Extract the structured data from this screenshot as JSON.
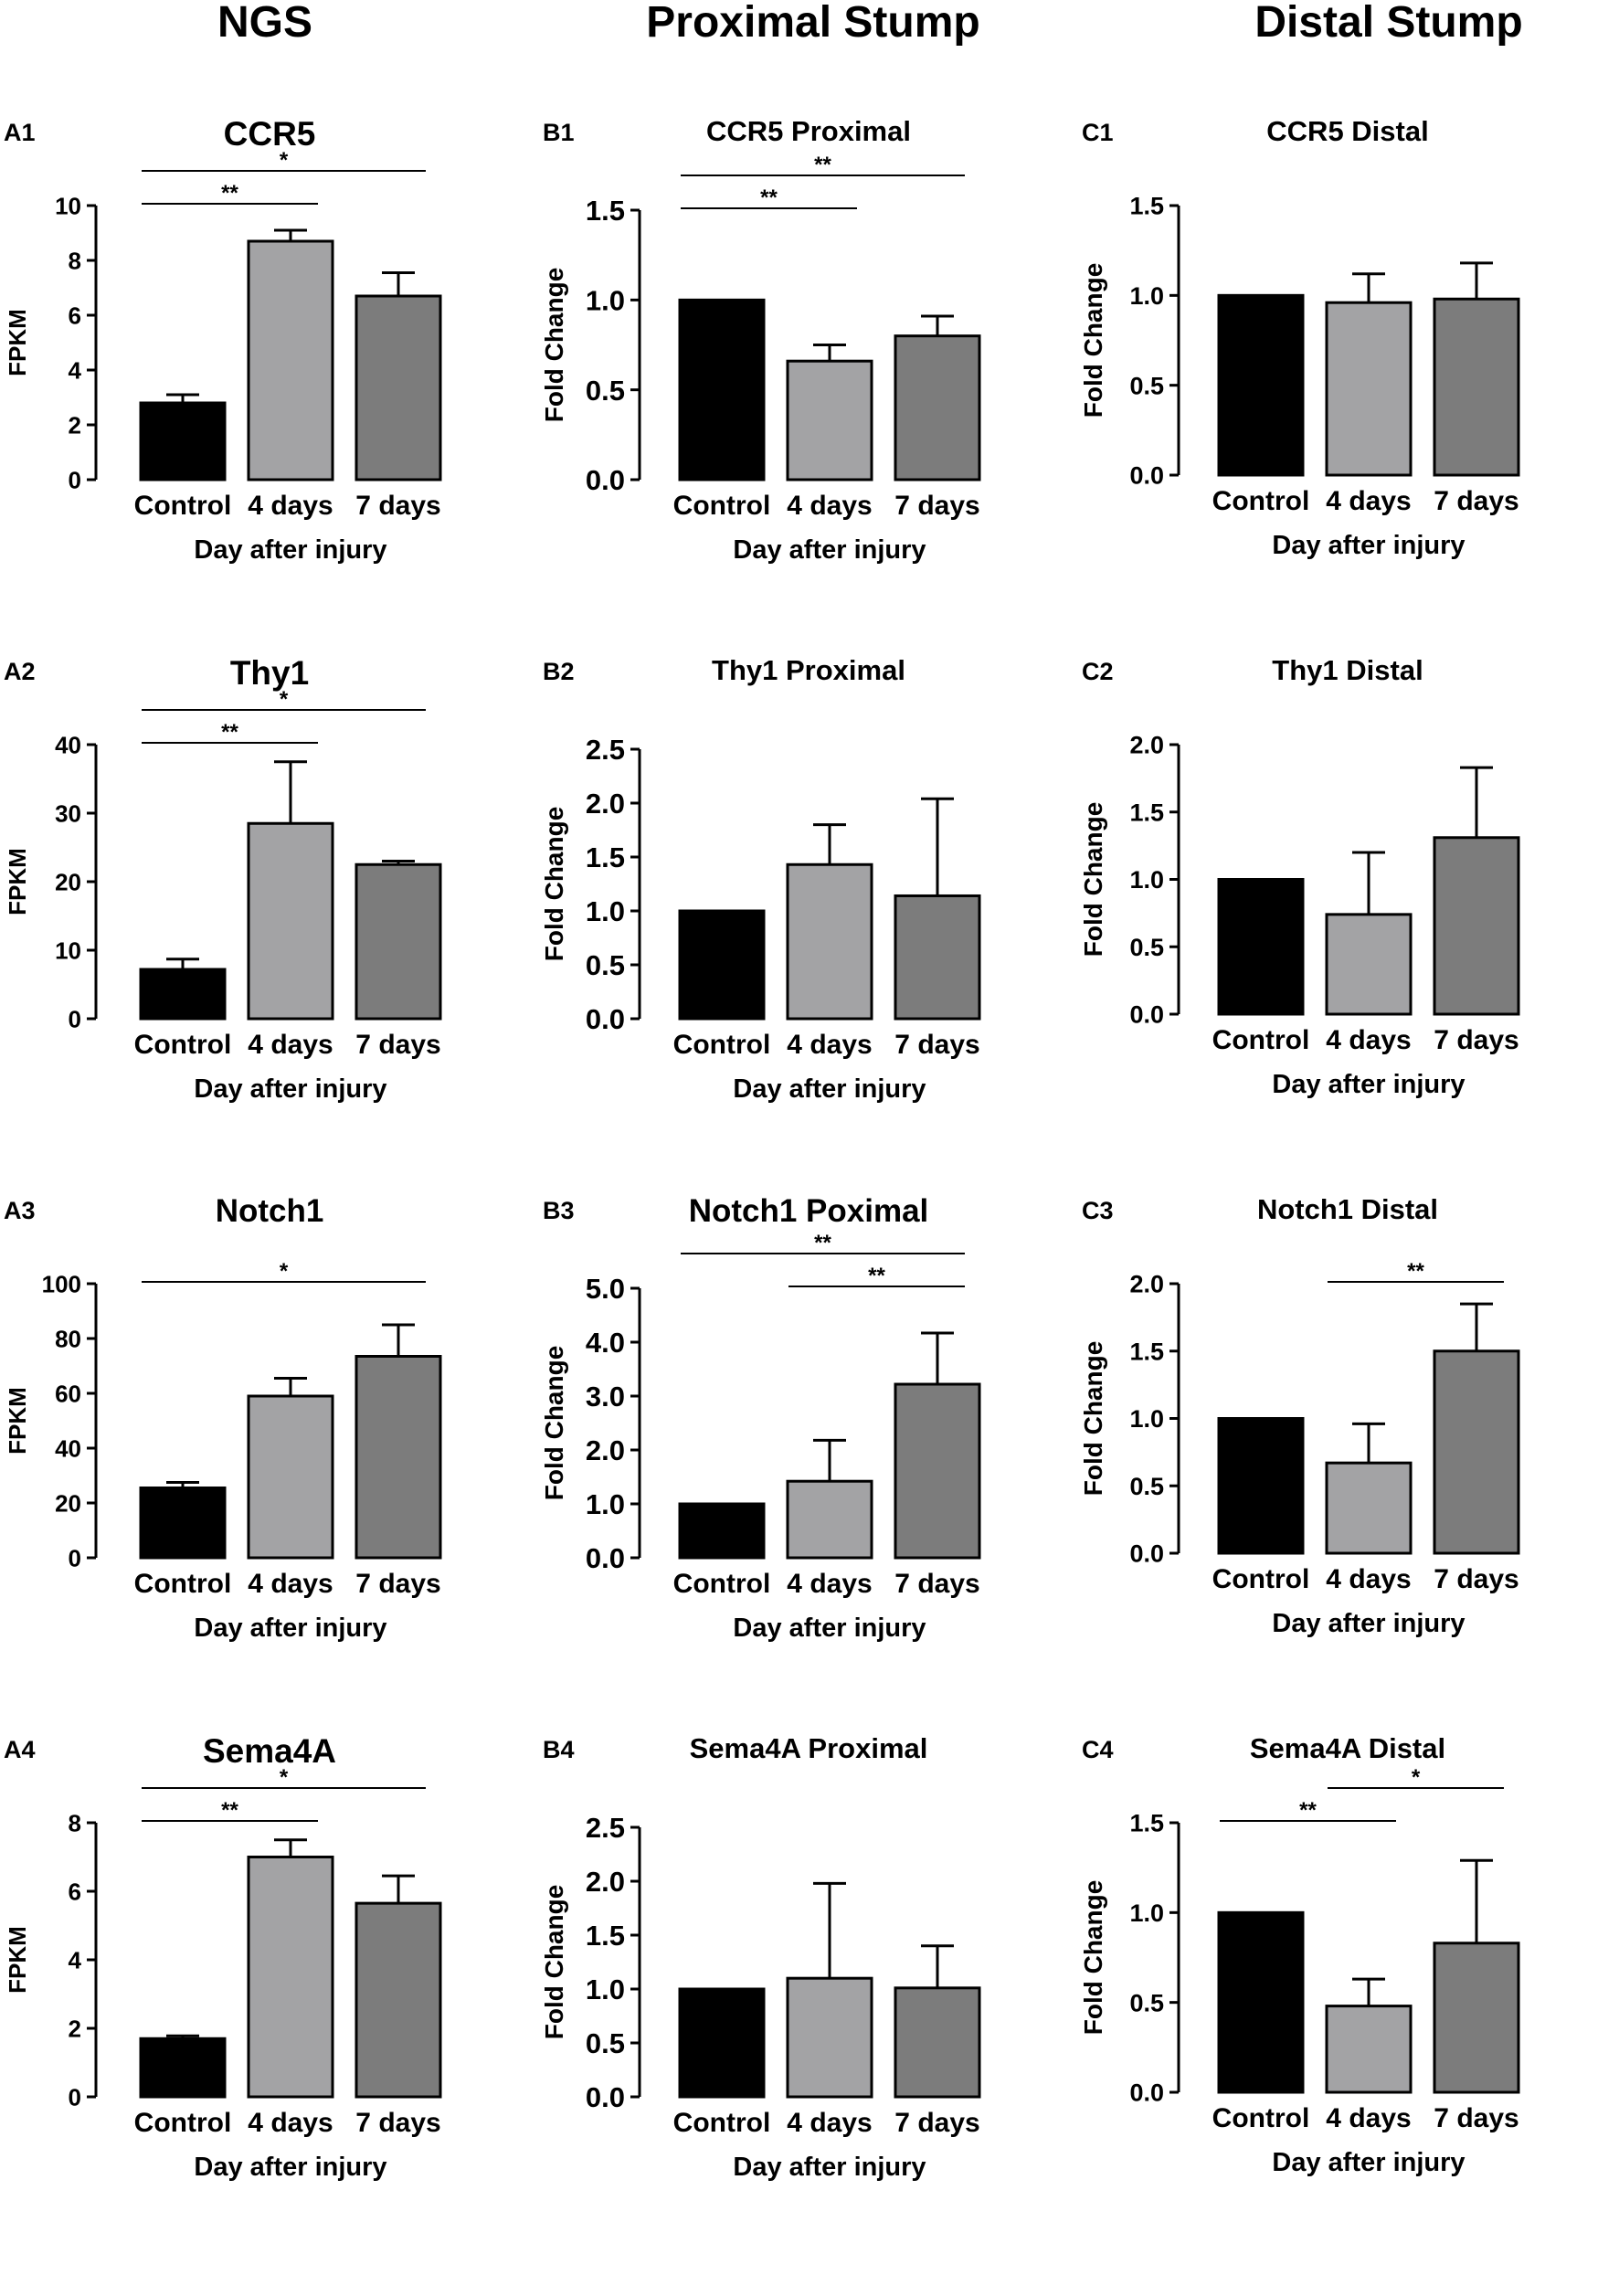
{
  "column_headers": [
    "NGS",
    "Proximal Stump",
    "Distal Stump"
  ],
  "colors": {
    "Control": "#000000",
    "4 days": "#a3a3a5",
    "7 days": "#7c7c7c",
    "axis": "#000000"
  },
  "chart_data": [
    {
      "id": "A1",
      "panel_label": "A1",
      "title": "CCR5",
      "type": "bar",
      "categories": [
        "Control",
        "4 days",
        "7 days"
      ],
      "values": [
        2.8,
        8.7,
        6.7
      ],
      "errors": [
        0.3,
        0.4,
        0.85
      ],
      "ylabel": "FPKM",
      "xlabel": "Day after injury",
      "ylim": [
        0,
        10
      ],
      "yticks": [
        0,
        2,
        4,
        6,
        8,
        10
      ],
      "ytick_labels": [
        "0",
        "2",
        "4",
        "6",
        "8",
        "10"
      ],
      "significance": [
        {
          "from": 0,
          "to": 1,
          "label": "**",
          "level": 1
        },
        {
          "from": 0,
          "to": 2,
          "label": "*",
          "level": 2
        }
      ]
    },
    {
      "id": "B1",
      "panel_label": "B1",
      "title": "CCR5 Proximal",
      "type": "bar",
      "categories": [
        "Control",
        "4 days",
        "7 days"
      ],
      "values": [
        1.0,
        0.66,
        0.8
      ],
      "errors": [
        0,
        0.09,
        0.11
      ],
      "ylabel": "Fold Change",
      "xlabel": "Day after injury",
      "ylim": [
        0,
        1.5
      ],
      "yticks": [
        0,
        0.5,
        1.0,
        1.5
      ],
      "ytick_labels": [
        "0.0",
        "0.5",
        "1.0",
        "1.5"
      ],
      "significance": [
        {
          "from": 0,
          "to": 1,
          "label": "**",
          "level": 1
        },
        {
          "from": 0,
          "to": 2,
          "label": "**",
          "level": 2
        }
      ]
    },
    {
      "id": "C1",
      "panel_label": "C1",
      "title": "CCR5 Distal",
      "type": "bar",
      "categories": [
        "Control",
        "4 days",
        "7 days"
      ],
      "values": [
        1.0,
        0.96,
        0.98
      ],
      "errors": [
        0,
        0.16,
        0.2
      ],
      "ylabel": "Fold Change",
      "xlabel": "Day after injury",
      "ylim": [
        0,
        1.5
      ],
      "yticks": [
        0,
        0.5,
        1.0,
        1.5
      ],
      "ytick_labels": [
        "0.0",
        "0.5",
        "1.0",
        "1.5"
      ],
      "significance": []
    },
    {
      "id": "A2",
      "panel_label": "A2",
      "title": "Thy1",
      "type": "bar",
      "categories": [
        "Control",
        "4 days",
        "7 days"
      ],
      "values": [
        7.2,
        28.5,
        22.5
      ],
      "errors": [
        1.5,
        9.0,
        0.5
      ],
      "ylabel": "FPKM",
      "xlabel": "Day after injury",
      "ylim": [
        0,
        40
      ],
      "yticks": [
        0,
        10,
        20,
        30,
        40
      ],
      "ytick_labels": [
        "0",
        "10",
        "20",
        "30",
        "40"
      ],
      "significance": [
        {
          "from": 0,
          "to": 1,
          "label": "**",
          "level": 1
        },
        {
          "from": 0,
          "to": 2,
          "label": "*",
          "level": 2
        }
      ]
    },
    {
      "id": "B2",
      "panel_label": "B2",
      "title": "Thy1 Proximal",
      "type": "bar",
      "categories": [
        "Control",
        "4 days",
        "7 days"
      ],
      "values": [
        1.0,
        1.43,
        1.14
      ],
      "errors": [
        0,
        0.37,
        0.9
      ],
      "ylabel": "Fold Change",
      "xlabel": "Day after injury",
      "ylim": [
        0,
        2.5
      ],
      "yticks": [
        0,
        0.5,
        1.0,
        1.5,
        2.0,
        2.5
      ],
      "ytick_labels": [
        "0.0",
        "0.5",
        "1.0",
        "1.5",
        "2.0",
        "2.5"
      ],
      "significance": []
    },
    {
      "id": "C2",
      "panel_label": "C2",
      "title": "Thy1 Distal",
      "type": "bar",
      "categories": [
        "Control",
        "4 days",
        "7 days"
      ],
      "values": [
        1.0,
        0.74,
        1.31
      ],
      "errors": [
        0,
        0.46,
        0.52
      ],
      "ylabel": "Fold Change",
      "xlabel": "Day after injury",
      "ylim": [
        0,
        2.0
      ],
      "yticks": [
        0,
        0.5,
        1.0,
        1.5,
        2.0
      ],
      "ytick_labels": [
        "0.0",
        "0.5",
        "1.0",
        "1.5",
        "2.0"
      ],
      "significance": []
    },
    {
      "id": "A3",
      "panel_label": "A3",
      "title": "Notch1",
      "type": "bar",
      "categories": [
        "Control",
        "4 days",
        "7 days"
      ],
      "values": [
        25.5,
        59,
        73.5
      ],
      "errors": [
        2.0,
        6.5,
        11.5
      ],
      "ylabel": "FPKM",
      "xlabel": "Day after injury",
      "ylim": [
        0,
        100
      ],
      "yticks": [
        0,
        20,
        40,
        60,
        80,
        100
      ],
      "ytick_labels": [
        "0",
        "20",
        "40",
        "60",
        "80",
        "100"
      ],
      "significance": [
        {
          "from": 0,
          "to": 2,
          "label": "*",
          "level": 1
        }
      ]
    },
    {
      "id": "B3",
      "panel_label": "B3",
      "title": "Notch1 Poximal",
      "type": "bar",
      "categories": [
        "Control",
        "4 days",
        "7 days"
      ],
      "values": [
        1.0,
        1.42,
        3.22
      ],
      "errors": [
        0,
        0.76,
        0.95
      ],
      "ylabel": "Fold Change",
      "xlabel": "Day after injury",
      "ylim": [
        0,
        5.0
      ],
      "yticks": [
        0,
        1,
        2,
        3,
        4,
        5
      ],
      "ytick_labels": [
        "0.0",
        "1.0",
        "2.0",
        "3.0",
        "4.0",
        "5.0"
      ],
      "significance": [
        {
          "from": 1,
          "to": 2,
          "label": "**",
          "level": 1
        },
        {
          "from": 0,
          "to": 2,
          "label": "**",
          "level": 2
        }
      ]
    },
    {
      "id": "C3",
      "panel_label": "C3",
      "title": "Notch1 Distal",
      "type": "bar",
      "categories": [
        "Control",
        "4 days",
        "7 days"
      ],
      "values": [
        1.0,
        0.67,
        1.5
      ],
      "errors": [
        0,
        0.29,
        0.35
      ],
      "ylabel": "Fold Change",
      "xlabel": "Day after injury",
      "ylim": [
        0,
        2.0
      ],
      "yticks": [
        0,
        0.5,
        1.0,
        1.5,
        2.0
      ],
      "ytick_labels": [
        "0.0",
        "0.5",
        "1.0",
        "1.5",
        "2.0"
      ],
      "significance": [
        {
          "from": 1,
          "to": 2,
          "label": "**",
          "level": 1
        }
      ]
    },
    {
      "id": "A4",
      "panel_label": "A4",
      "title": "Sema4A",
      "type": "bar",
      "categories": [
        "Control",
        "4 days",
        "7 days"
      ],
      "values": [
        1.7,
        7.0,
        5.65
      ],
      "errors": [
        0.08,
        0.5,
        0.8
      ],
      "ylabel": "FPKM",
      "xlabel": "Day after injury",
      "ylim": [
        0,
        8
      ],
      "yticks": [
        0,
        2,
        4,
        6,
        8
      ],
      "ytick_labels": [
        "0",
        "2",
        "4",
        "6",
        "8"
      ],
      "significance": [
        {
          "from": 0,
          "to": 1,
          "label": "**",
          "level": 1
        },
        {
          "from": 0,
          "to": 2,
          "label": "*",
          "level": 2
        }
      ]
    },
    {
      "id": "B4",
      "panel_label": "B4",
      "title": "Sema4A Proximal",
      "type": "bar",
      "categories": [
        "Control",
        "4 days",
        "7 days"
      ],
      "values": [
        1.0,
        1.1,
        1.01
      ],
      "errors": [
        0,
        0.88,
        0.39
      ],
      "ylabel": "Fold Change",
      "xlabel": "Day after injury",
      "ylim": [
        0,
        2.5
      ],
      "yticks": [
        0,
        0.5,
        1.0,
        1.5,
        2.0,
        2.5
      ],
      "ytick_labels": [
        "0.0",
        "0.5",
        "1.0",
        "1.5",
        "2.0",
        "2.5"
      ],
      "significance": []
    },
    {
      "id": "C4",
      "panel_label": "C4",
      "title": "Sema4A Distal",
      "type": "bar",
      "categories": [
        "Control",
        "4 days",
        "7 days"
      ],
      "values": [
        1.0,
        0.48,
        0.83
      ],
      "errors": [
        0,
        0.15,
        0.46
      ],
      "ylabel": "Fold Change",
      "xlabel": "Day after injury",
      "ylim": [
        0,
        1.5
      ],
      "yticks": [
        0,
        0.5,
        1.0,
        1.5
      ],
      "ytick_labels": [
        "0.0",
        "0.5",
        "1.0",
        "1.5"
      ],
      "significance": [
        {
          "from": 0,
          "to": 1,
          "label": "**",
          "level": 1
        },
        {
          "from": 1,
          "to": 2,
          "label": "*",
          "level": 2
        }
      ]
    }
  ]
}
